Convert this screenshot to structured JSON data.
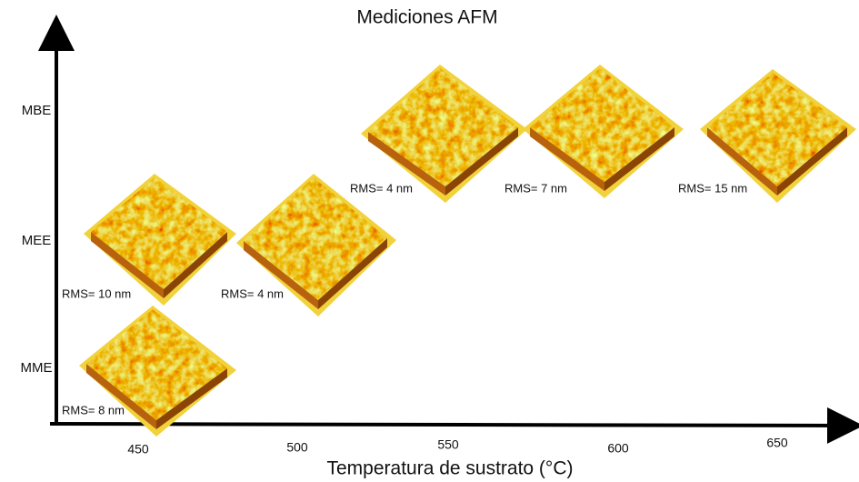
{
  "title": "Mediciones AFM",
  "y_axis": {
    "labels": [
      "MBE",
      "MEE",
      "MME"
    ]
  },
  "x_axis": {
    "title": "Temperatura de sustrato (°C)",
    "labels": [
      "450",
      "500",
      "550",
      "600",
      "650"
    ]
  },
  "samples": [
    {
      "rms": "RMS= 4 nm"
    },
    {
      "rms": "RMS= 7 nm"
    },
    {
      "rms": "RMS= 15 nm"
    },
    {
      "rms": "RMS= 10 nm"
    },
    {
      "rms": "RMS= 4 nm"
    },
    {
      "rms": "RMS= 8 nm"
    }
  ]
}
